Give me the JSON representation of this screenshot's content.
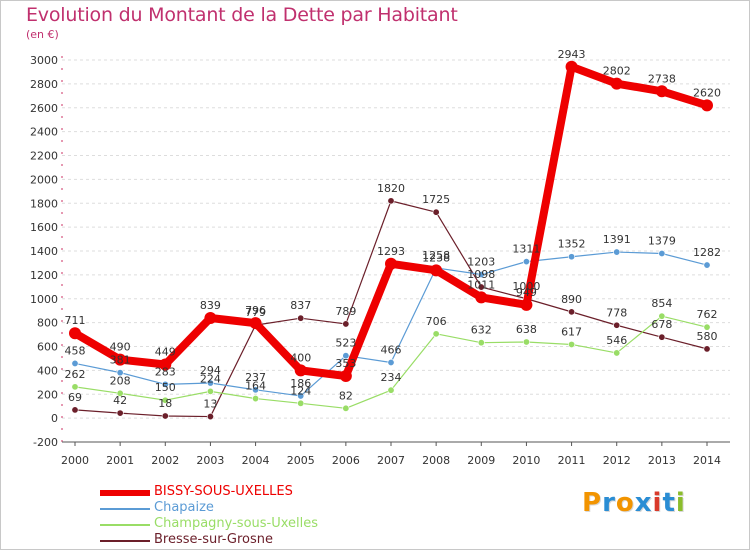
{
  "chart_data": {
    "type": "line",
    "title": "Evolution du Montant de la Dette par Habitant",
    "subtitle": "(en €)",
    "x": [
      "2000",
      "2001",
      "2002",
      "2003",
      "2004",
      "2005",
      "2006",
      "2007",
      "2008",
      "2009",
      "2010",
      "2011",
      "2012",
      "2013",
      "2014"
    ],
    "ylim": [
      -200,
      3000
    ],
    "yticks": [
      -200,
      0,
      200,
      400,
      600,
      800,
      1000,
      1200,
      1400,
      1600,
      1800,
      2000,
      2200,
      2400,
      2600,
      2800,
      3000
    ],
    "grid": "horizontal",
    "legend_position": "bottom-left",
    "series": [
      {
        "name": "BISSY-SOUS-UXELLES",
        "color": "#ee0000",
        "values": [
          711,
          490,
          449,
          839,
          796,
          400,
          353,
          1293,
          1238,
          1011,
          949,
          2943,
          2802,
          2738,
          2620
        ]
      },
      {
        "name": "Chapaize",
        "color": "#5b9bd5",
        "values": [
          458,
          381,
          283,
          294,
          237,
          186,
          523,
          466,
          1258,
          1203,
          1311,
          1352,
          1391,
          1379,
          1282
        ]
      },
      {
        "name": "Champagny-sous-Uxelles",
        "color": "#99dd66",
        "values": [
          262,
          208,
          150,
          224,
          164,
          124,
          82,
          234,
          706,
          632,
          638,
          617,
          546,
          854,
          762
        ]
      },
      {
        "name": "Bresse-sur-Grosne",
        "color": "#6b1f2a",
        "values": [
          69,
          42,
          18,
          13,
          779,
          837,
          789,
          1820,
          1725,
          1098,
          1000,
          890,
          778,
          678,
          580
        ]
      }
    ]
  },
  "brand": {
    "letters": [
      "P",
      "r",
      "o",
      "x",
      "i",
      "t",
      "i"
    ],
    "colors": [
      "#f29400",
      "#2a8dd4",
      "#f29400",
      "#2a8dd4",
      "#d93a2b",
      "#2a8dd4",
      "#8bbd2c"
    ]
  }
}
